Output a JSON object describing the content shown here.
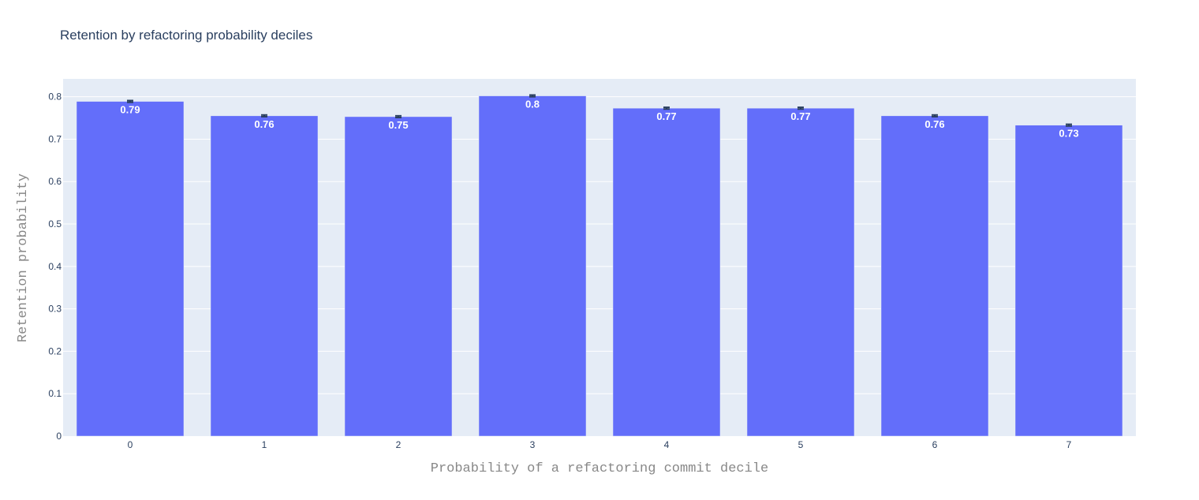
{
  "chart_data": {
    "type": "bar",
    "title": "Retention by refactoring probability deciles",
    "xlabel": "Probability of a refactoring commit decile",
    "ylabel": "Retention probability",
    "categories": [
      "0",
      "1",
      "2",
      "3",
      "4",
      "5",
      "6",
      "7"
    ],
    "values": [
      0.789,
      0.755,
      0.753,
      0.802,
      0.773,
      0.773,
      0.755,
      0.733
    ],
    "value_labels": [
      "0.79",
      "0.76",
      "0.75",
      "0.8",
      "0.77",
      "0.77",
      "0.76",
      "0.73"
    ],
    "error": [
      0.002,
      0.002,
      0.002,
      0.002,
      0.002,
      0.002,
      0.002,
      0.002
    ],
    "yticks": [
      "0",
      "0.1",
      "0.2",
      "0.3",
      "0.4",
      "0.5",
      "0.6",
      "0.7",
      "0.8"
    ],
    "ylim": [
      0,
      0.8421
    ],
    "grid": true,
    "bar_color": "#636efa",
    "plot_bg": "#e5ecf6"
  }
}
